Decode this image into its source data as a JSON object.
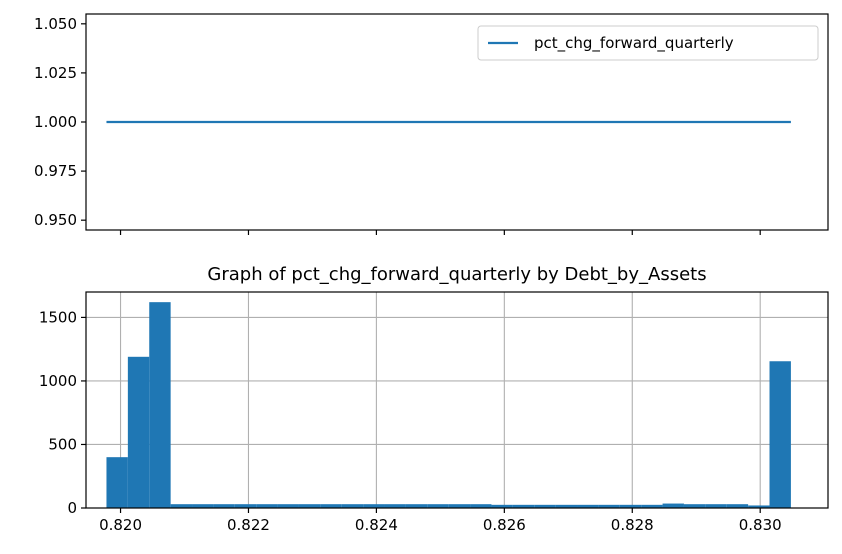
{
  "chart_data": [
    {
      "type": "line",
      "title": "",
      "xlabel": "",
      "ylabel": "",
      "xlim": [
        0.81946,
        0.83106
      ],
      "ylim": [
        0.945,
        1.055
      ],
      "yticks": [
        "0.950",
        "0.975",
        "1.000",
        "1.025",
        "1.050"
      ],
      "ytick_values": [
        0.95,
        0.975,
        1.0,
        1.025,
        1.05
      ],
      "xtick_values": [
        0.82,
        0.822,
        0.824,
        0.826,
        0.828,
        0.83
      ],
      "x_tick_labels_shown": false,
      "grid": false,
      "legend": {
        "position": "top-right"
      },
      "series": [
        {
          "name": "pct_chg_forward_quarterly",
          "color": "#1f77b4",
          "x": [
            0.81978,
            0.83048
          ],
          "values": [
            1.0,
            1.0
          ]
        }
      ]
    },
    {
      "type": "bar",
      "title": "Graph of pct_chg_forward_quarterly by Debt_by_Assets",
      "xlabel": "",
      "ylabel": "",
      "xlim": [
        0.81946,
        0.83106
      ],
      "ylim": [
        0,
        1700
      ],
      "xticks": [
        "0.820",
        "0.822",
        "0.824",
        "0.826",
        "0.828",
        "0.830"
      ],
      "xtick_values": [
        0.82,
        0.822,
        0.824,
        0.826,
        0.828,
        0.83
      ],
      "yticks": [
        "0",
        "500",
        "1000",
        "1500"
      ],
      "ytick_values": [
        0,
        500,
        1000,
        1500
      ],
      "grid": true,
      "color": "#1f77b4",
      "bin_start": 0.81978,
      "bin_end": 0.83048,
      "values": [
        400,
        1190,
        1620,
        30,
        30,
        30,
        30,
        30,
        30,
        30,
        30,
        30,
        30,
        30,
        30,
        30,
        30,
        30,
        25,
        25,
        25,
        25,
        25,
        25,
        25,
        25,
        35,
        30,
        30,
        30,
        20,
        1155
      ]
    }
  ]
}
